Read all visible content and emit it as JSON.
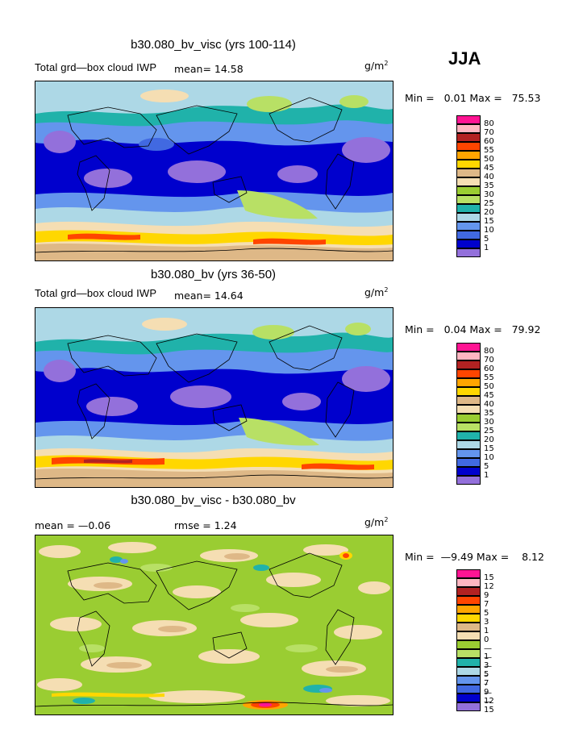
{
  "season": "JJA",
  "panels": [
    {
      "title": "b30.080_bv_visc (yrs 100-114)",
      "left_text": "Total grd—box cloud IWP",
      "stat_text": "mean=  14.58",
      "units": "g/m",
      "units_sup": "2",
      "min_label": "Min =",
      "min": "0.01",
      "max_label": "Max =",
      "max": "75.53",
      "legend_labels": [
        "80",
        "70",
        "60",
        "55",
        "50",
        "45",
        "40",
        "35",
        "30",
        "25",
        "20",
        "15",
        "10",
        "5",
        "1"
      ],
      "legend_colors": [
        "#ff1493",
        "#ffb6c1",
        "#b22222",
        "#ff4500",
        "#ffa500",
        "#ffd700",
        "#deb887",
        "#f5deb3",
        "#9acd32",
        "#b8e065",
        "#20b2aa",
        "#add8e6",
        "#6495ed",
        "#4169e1",
        "#0000cd",
        "#9370db"
      ]
    },
    {
      "title": "b30.080_bv (yrs 36-50)",
      "left_text": "Total grd—box cloud IWP",
      "stat_text": "mean=  14.64",
      "units": "g/m",
      "units_sup": "2",
      "min_label": "Min =",
      "min": "0.04",
      "max_label": "Max =",
      "max": "79.92",
      "legend_labels": [
        "80",
        "70",
        "60",
        "55",
        "50",
        "45",
        "40",
        "35",
        "30",
        "25",
        "20",
        "15",
        "10",
        "5",
        "1"
      ],
      "legend_colors": [
        "#ff1493",
        "#ffb6c1",
        "#b22222",
        "#ff4500",
        "#ffa500",
        "#ffd700",
        "#deb887",
        "#f5deb3",
        "#9acd32",
        "#b8e065",
        "#20b2aa",
        "#add8e6",
        "#6495ed",
        "#4169e1",
        "#0000cd",
        "#9370db"
      ]
    },
    {
      "title": "b30.080_bv_visc - b30.080_bv",
      "mean_text": "mean =  —0.06",
      "rmse_text": "rmse =   1.24",
      "units": "g/m",
      "units_sup": "2",
      "min_label": "Min =",
      "min": "—9.49",
      "max_label": "Max =",
      "max": "8.12",
      "legend_labels": [
        "15",
        "12",
        "9",
        "7",
        "5",
        "3",
        "1",
        "0",
        "—1",
        "—3",
        "—5",
        "–7",
        "–9",
        "—12",
        "—15"
      ],
      "legend_colors": [
        "#ff1493",
        "#ffb6c1",
        "#b22222",
        "#ff4500",
        "#ffa500",
        "#ffd700",
        "#deb887",
        "#f5deb3",
        "#9acd32",
        "#b8e065",
        "#20b2aa",
        "#add8e6",
        "#6495ed",
        "#4169e1",
        "#0000cd",
        "#9370db"
      ]
    }
  ]
}
